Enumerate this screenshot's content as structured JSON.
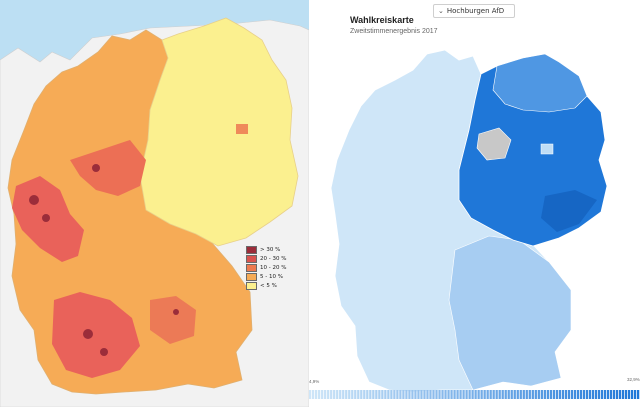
{
  "left_map": {
    "legend": [
      {
        "label": "> 30 %",
        "color": "#9b2d3a"
      },
      {
        "label": "20 - 30 %",
        "color": "#d9534f"
      },
      {
        "label": "10 - 20 %",
        "color": "#ed7a50"
      },
      {
        "label": "5 - 10 %",
        "color": "#f6ab56"
      },
      {
        "label": "< 5 %",
        "color": "#fbf08f"
      }
    ],
    "colors": {
      "sea": "#bcdff3",
      "land_outside": "#f2f2f2",
      "border": "#e8d08a"
    }
  },
  "right_map": {
    "dropdown_label": "Hochburgen AfD",
    "dropdown_icon": "chevron-down-icon",
    "title": "Wahlkreiskarte",
    "subtitle": "Zweitstimmenergebnis 2017",
    "scale_min": "4,9%",
    "scale_max": "32,9%",
    "colors": {
      "light": "#cfe6f8",
      "mid": "#7fb7ec",
      "dark": "#1f77d8",
      "no_data": "#c8c8c8"
    }
  }
}
